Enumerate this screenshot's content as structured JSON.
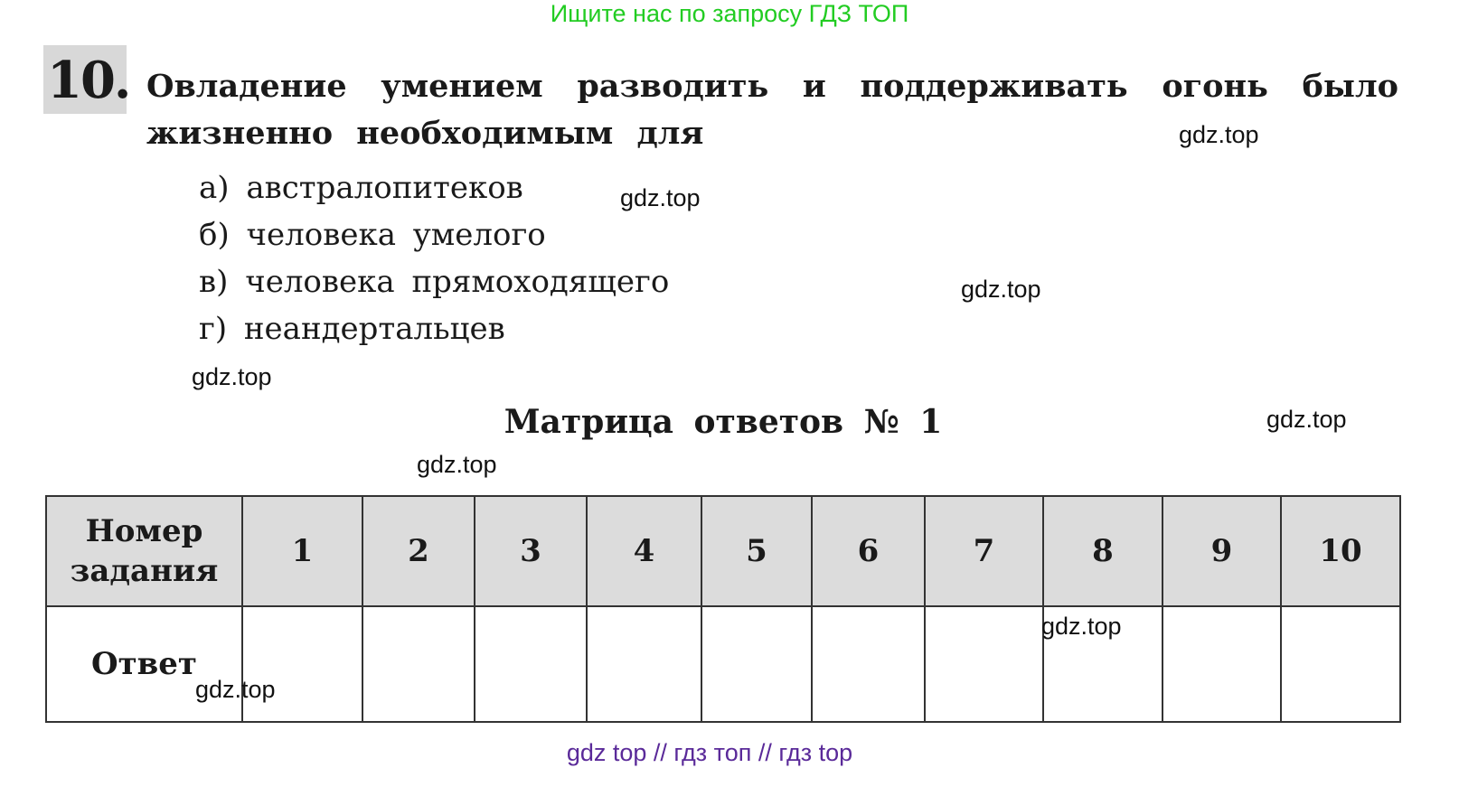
{
  "banner": "Ищите нас по запросу ГДЗ ТОП",
  "question": {
    "number": "10.",
    "text": "Овладение умением разводить и поддерживать огонь было жизненно необходимым для",
    "options": [
      "а) австралопитеков",
      "б) человека умелого",
      "в) человека прямоходящего",
      "г) неандертальцев"
    ]
  },
  "matrix": {
    "title": "Матрица ответов № 1",
    "header_label": "Номер задания",
    "columns": [
      "1",
      "2",
      "3",
      "4",
      "5",
      "6",
      "7",
      "8",
      "9",
      "10"
    ],
    "answer_label": "Ответ"
  },
  "watermarks": [
    "gdz.top",
    "gdz.top",
    "gdz.top",
    "gdz.top",
    "gdz.top",
    "gdz.top",
    "gdz.top",
    "gdz.top"
  ],
  "footer": "gdz top  //  гдз топ  //  гдз top"
}
